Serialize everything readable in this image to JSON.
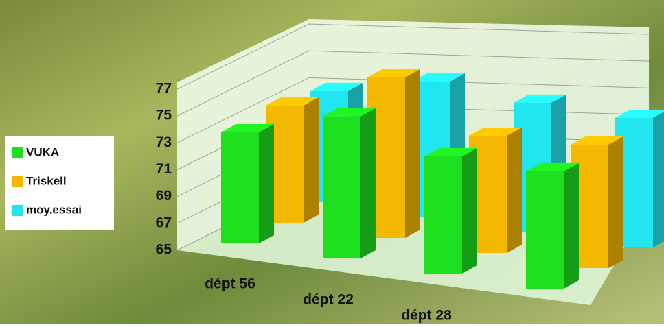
{
  "chart_data": {
    "type": "bar3d",
    "categories": [
      "dépt 56",
      "dépt 22",
      "dépt 28",
      null
    ],
    "series": [
      {
        "name": "VUKA",
        "color": "#1fe01f",
        "values": [
          74,
          76.5,
          74.5,
          74.5
        ]
      },
      {
        "name": "Triskell",
        "color": "#f5b800",
        "values": [
          74.5,
          78,
          74.5,
          75
        ]
      },
      {
        "name": "moy.essai",
        "color": "#22e6ef",
        "values": [
          74,
          76,
          75.5,
          75.5
        ]
      }
    ],
    "ylim": [
      65,
      77
    ],
    "yticks": [
      65,
      67,
      69,
      71,
      73,
      75,
      77
    ],
    "grid": true,
    "legend": "left"
  }
}
